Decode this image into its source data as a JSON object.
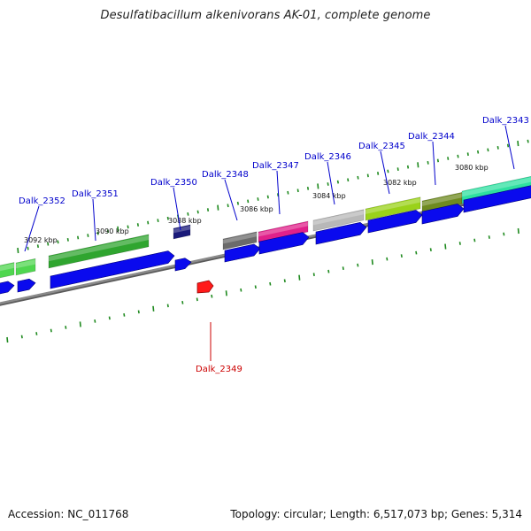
{
  "title": "Desulfatibacillum alkenivorans AK-01, complete genome",
  "footer": {
    "accession": "Accession: NC_011768",
    "topology": "Topology: circular; Length: 6,517,073 bp; Genes: 5,314"
  },
  "colors": {
    "forward_label": "#0000cc",
    "reverse_label": "#cc0000",
    "reverse_strand_gene": "#ff1a1a",
    "cds_bar": "#0a0aee",
    "tick": "#1f8a1f",
    "backbone": "#8a8a8a"
  },
  "ticks": [
    {
      "label": "3092 kbp"
    },
    {
      "label": "3090 kbp"
    },
    {
      "label": "3088 kbp"
    },
    {
      "label": "3086 kbp"
    },
    {
      "label": "3084 kbp"
    },
    {
      "label": "3082 kbp"
    },
    {
      "label": "3080 kbp"
    }
  ],
  "genes": [
    {
      "name": "Dalk_2352",
      "strand": "+",
      "color": "#4fd64f"
    },
    {
      "name": "Dalk_2351",
      "strand": "+",
      "color": "#2fa52f"
    },
    {
      "name": "Dalk_2350",
      "strand": "+",
      "color": "#1a1a7a"
    },
    {
      "name": "Dalk_2349",
      "strand": "-",
      "color": "#ff1a1a"
    },
    {
      "name": "Dalk_2348",
      "strand": "+",
      "color": "#6b6b6b"
    },
    {
      "name": "Dalk_2347",
      "strand": "+",
      "color": "#e0208a"
    },
    {
      "name": "Dalk_2346",
      "strand": "+",
      "color": "#b8b8b8"
    },
    {
      "name": "Dalk_2345",
      "strand": "+",
      "color": "#9ad21a"
    },
    {
      "name": "Dalk_2344",
      "strand": "+",
      "color": "#6e8a1f"
    },
    {
      "name": "Dalk_2343",
      "strand": "+",
      "color": "#2ee0a0"
    }
  ]
}
